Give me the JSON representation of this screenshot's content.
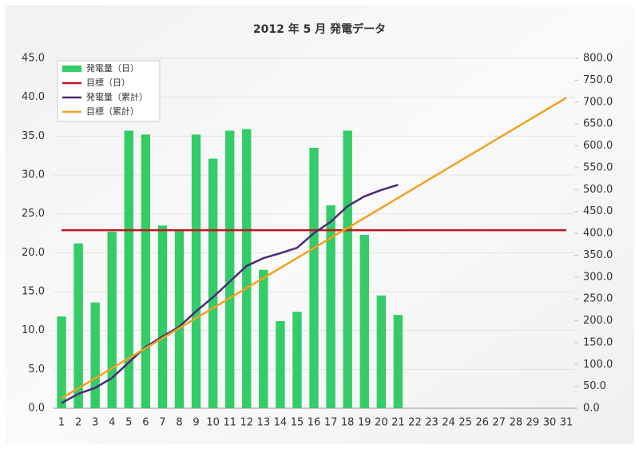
{
  "chart_data": {
    "type": "bar",
    "title": "2012 年 5 月 発電データ",
    "categories": [
      1,
      2,
      3,
      4,
      5,
      6,
      7,
      8,
      9,
      10,
      11,
      12,
      13,
      14,
      15,
      16,
      17,
      18,
      19,
      20,
      21,
      22,
      23,
      24,
      25,
      26,
      27,
      28,
      29,
      30,
      31
    ],
    "series": [
      {
        "name": "発電量（日）",
        "type": "bar",
        "color": "#33cc66",
        "values": [
          11.8,
          21.2,
          13.6,
          22.7,
          35.7,
          35.2,
          23.5,
          22.8,
          35.2,
          32.1,
          35.7,
          35.9,
          17.8,
          11.2,
          12.4,
          33.5,
          26.1,
          35.7,
          22.3,
          14.5,
          12.0,
          null,
          null,
          null,
          null,
          null,
          null,
          null,
          null,
          null,
          null
        ]
      },
      {
        "name": "目標（日）",
        "type": "line",
        "color": "#c0141e",
        "values": [
          22.9,
          22.9,
          22.9,
          22.9,
          22.9,
          22.9,
          22.9,
          22.9,
          22.9,
          22.9,
          22.9,
          22.9,
          22.9,
          22.9,
          22.9,
          22.9,
          22.9,
          22.9,
          22.9,
          22.9,
          22.9,
          22.9,
          22.9,
          22.9,
          22.9,
          22.9,
          22.9,
          22.9,
          22.9,
          22.9,
          22.9
        ]
      },
      {
        "name": "発電量（累計）",
        "type": "line",
        "axis": "y2",
        "color": "#4b2a7a",
        "values": [
          11.8,
          33,
          46.6,
          69.3,
          105,
          140.2,
          163.7,
          186.5,
          221.7,
          253.8,
          289.5,
          325.4,
          343.2,
          354.4,
          366.8,
          400.3,
          426.4,
          462.1,
          484.4,
          498.9,
          510.9,
          null,
          null,
          null,
          null,
          null,
          null,
          null,
          null,
          null,
          null
        ]
      },
      {
        "name": "目標（累計）",
        "type": "line",
        "axis": "y2",
        "color": "#f5a020",
        "values": [
          22.9,
          45.8,
          68.7,
          91.6,
          114.5,
          137.4,
          160.3,
          183.2,
          206.1,
          229,
          251.9,
          274.8,
          297.7,
          320.6,
          343.5,
          366.4,
          389.3,
          412.2,
          435.1,
          458,
          480.9,
          503.8,
          526.7,
          549.6,
          572.5,
          595.4,
          618.3,
          641.2,
          664.1,
          687,
          709.9
        ]
      }
    ],
    "ylim": [
      0,
      45
    ],
    "yticks": [
      {
        "value": 0,
        "label": "0.0"
      },
      {
        "value": 5,
        "label": "5.0"
      },
      {
        "value": 10,
        "label": "10.0"
      },
      {
        "value": 15,
        "label": "15.0"
      },
      {
        "value": 20,
        "label": "20.0"
      },
      {
        "value": 25,
        "label": "25.0"
      },
      {
        "value": 30,
        "label": "30.0"
      },
      {
        "value": 35,
        "label": "35.0"
      },
      {
        "value": 40,
        "label": "40.0"
      },
      {
        "value": 45,
        "label": "45.0"
      }
    ],
    "y2lim": [
      0,
      800
    ],
    "y2ticks": [
      {
        "value": 0,
        "label": "0.0"
      },
      {
        "value": 50,
        "label": "50.0"
      },
      {
        "value": 100,
        "label": "100.0"
      },
      {
        "value": 150,
        "label": "150.0"
      },
      {
        "value": 200,
        "label": "200.0"
      },
      {
        "value": 250,
        "label": "250.0"
      },
      {
        "value": 300,
        "label": "300.0"
      },
      {
        "value": 350,
        "label": "350.0"
      },
      {
        "value": 400,
        "label": "400.0"
      },
      {
        "value": 450,
        "label": "450.0"
      },
      {
        "value": 500,
        "label": "500.0"
      },
      {
        "value": 550,
        "label": "550.0"
      },
      {
        "value": 600,
        "label": "600.0"
      },
      {
        "value": 650,
        "label": "650.0"
      },
      {
        "value": 700,
        "label": "700.0"
      },
      {
        "value": 750,
        "label": "750.0"
      },
      {
        "value": 800,
        "label": "800.0"
      }
    ],
    "grid": true,
    "legend": "top-left"
  }
}
